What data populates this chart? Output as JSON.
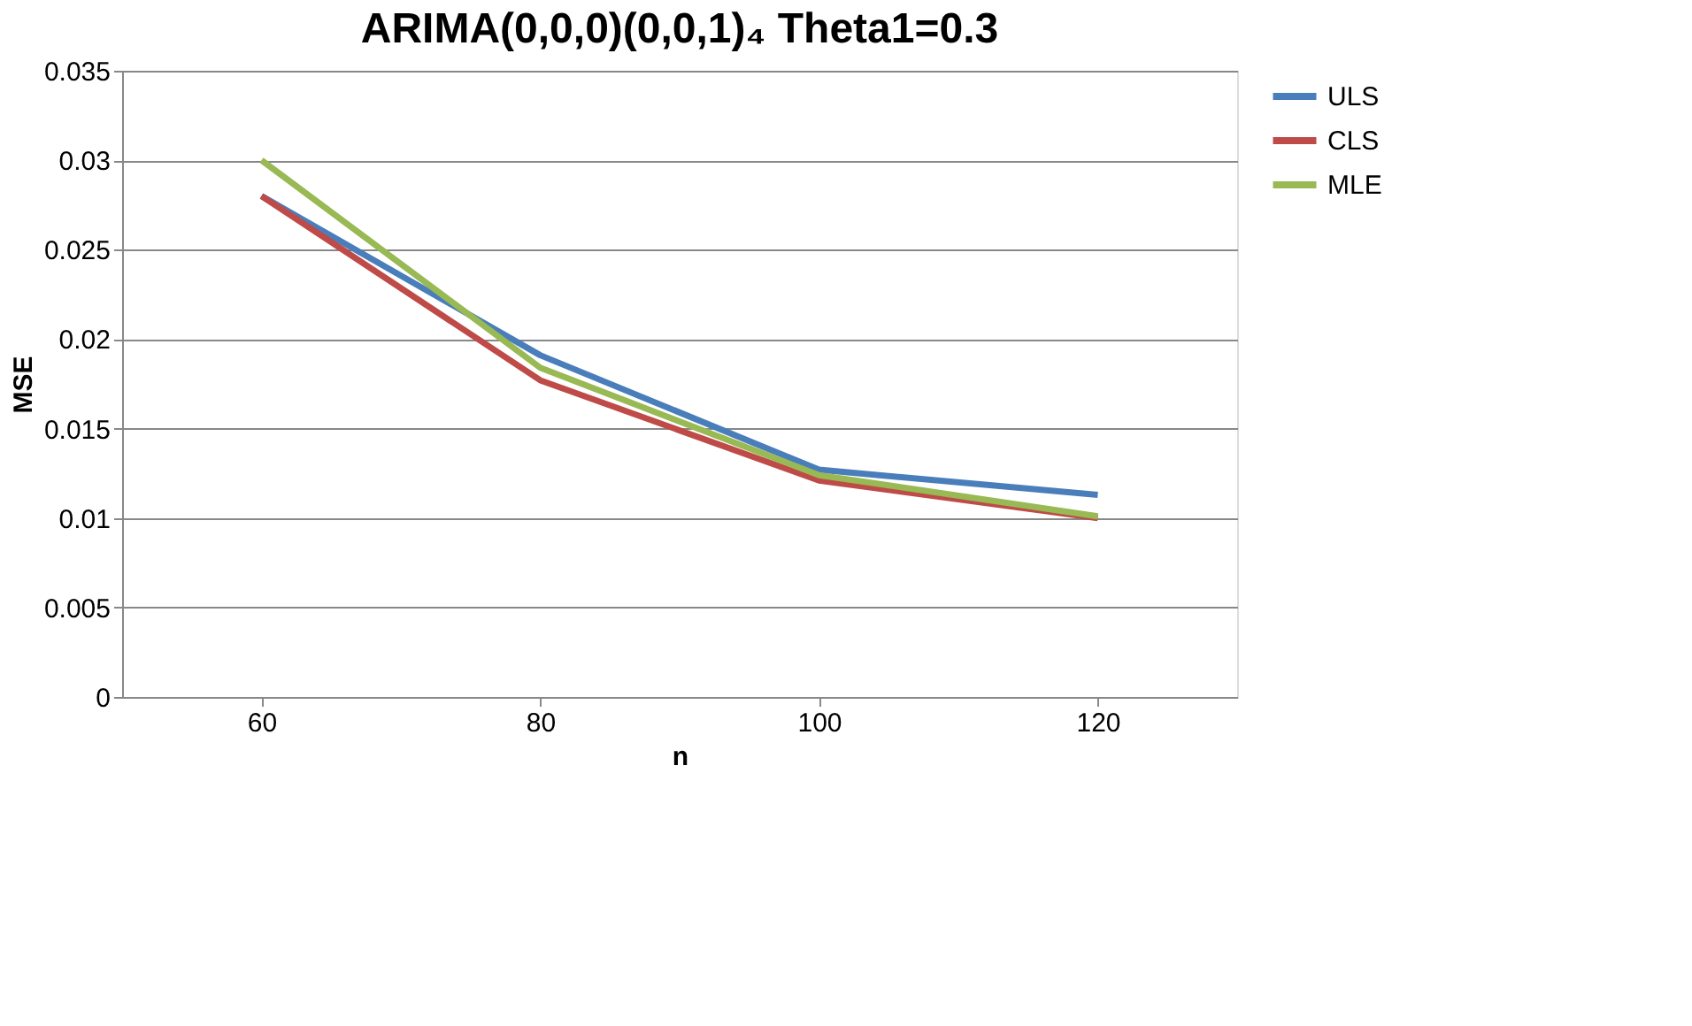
{
  "chart_data": {
    "type": "line",
    "title": "ARIMA(0,0,0)(0,0,1)₄ Theta1=0.3",
    "xlabel": "n",
    "ylabel": "MSE",
    "categories": [
      "60",
      "80",
      "100",
      "120"
    ],
    "series": [
      {
        "name": "ULS",
        "color": "#4a7ebb",
        "values": [
          0.028,
          0.0191,
          0.0127,
          0.0113
        ]
      },
      {
        "name": "CLS",
        "color": "#be4b48",
        "values": [
          0.028,
          0.0177,
          0.0121,
          0.01
        ]
      },
      {
        "name": "MLE",
        "color": "#98b954",
        "values": [
          0.03,
          0.0184,
          0.0124,
          0.0101
        ]
      }
    ],
    "ylim": [
      0,
      0.035
    ],
    "yticks": [
      0,
      0.005,
      0.01,
      0.015,
      0.02,
      0.025,
      0.03,
      0.035
    ],
    "grid": "y",
    "legend": "right",
    "marker": "none",
    "line_style": "solid"
  }
}
